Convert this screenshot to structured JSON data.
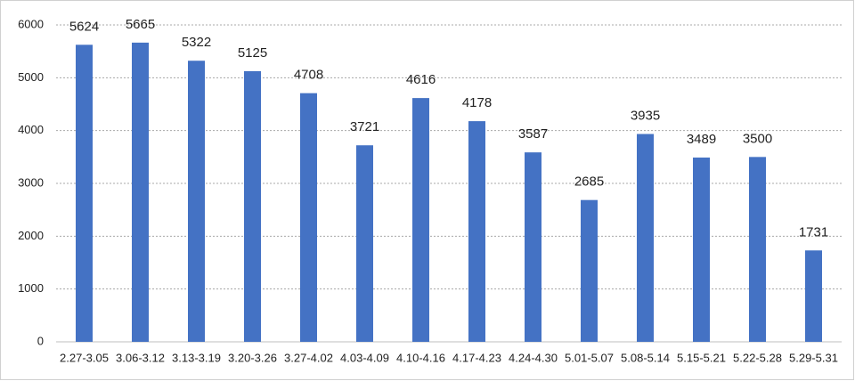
{
  "chart_data": {
    "type": "bar",
    "categories": [
      "2.27-3.05",
      "3.06-3.12",
      "3.13-3.19",
      "3.20-3.26",
      "3.27-4.02",
      "4.03-4.09",
      "4.10-4.16",
      "4.17-4.23",
      "4.24-4.30",
      "5.01-5.07",
      "5.08-5.14",
      "5.15-5.21",
      "5.22-5.28",
      "5.29-5.31"
    ],
    "values": [
      5624,
      5665,
      5322,
      5125,
      4708,
      3721,
      4616,
      4178,
      3587,
      2685,
      3935,
      3489,
      3500,
      1731
    ],
    "color": "#4472c4",
    "ylim": [
      0,
      6000
    ],
    "yticks": [
      0,
      1000,
      2000,
      3000,
      4000,
      5000,
      6000
    ],
    "grid": true
  }
}
